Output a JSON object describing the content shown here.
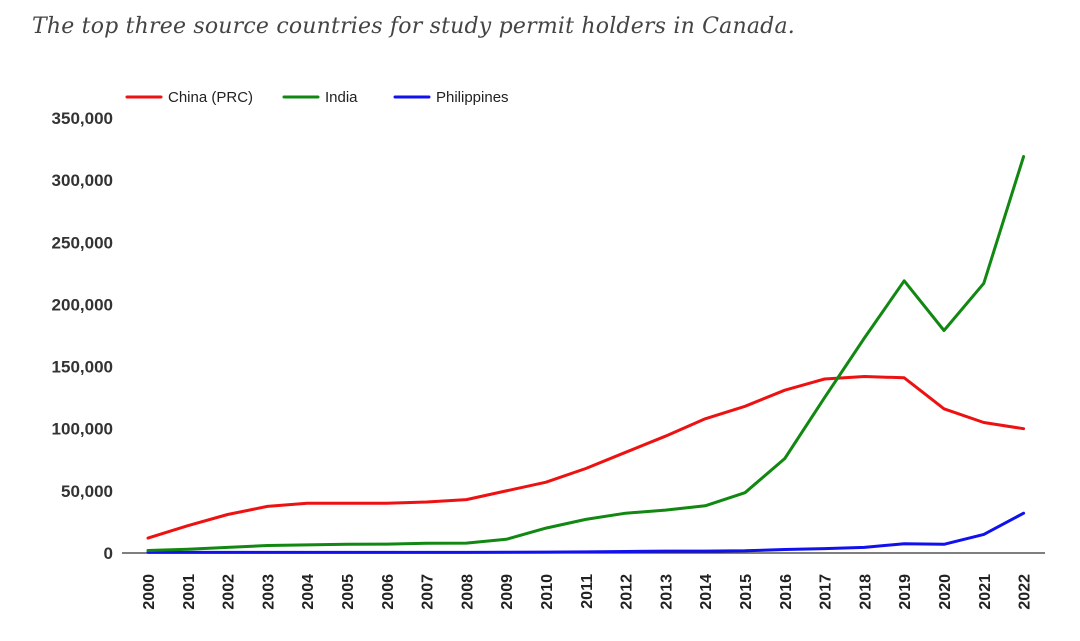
{
  "title": "The top three source countries for study permit holders in Canada.",
  "chart_data": {
    "type": "line",
    "title": "The top three source countries for study permit holders in Canada.",
    "xlabel": "",
    "ylabel": "",
    "x": [
      "2000",
      "2001",
      "2002",
      "2003",
      "2004",
      "2005",
      "2006",
      "2007",
      "2008",
      "2009",
      "2010",
      "2011",
      "2012",
      "2013",
      "2014",
      "2015",
      "2016",
      "2017",
      "2018",
      "2019",
      "2020",
      "2021",
      "2022"
    ],
    "ylim": [
      0,
      350000
    ],
    "yticks": [
      0,
      50000,
      100000,
      150000,
      200000,
      250000,
      300000,
      350000
    ],
    "ytick_labels": [
      "0",
      "50,000",
      "100,000",
      "150,000",
      "200,000",
      "250,000",
      "300,000",
      "350,000"
    ],
    "grid": false,
    "legend_position": "top-left",
    "series": [
      {
        "name": "China (PRC)",
        "color": "#ee1111",
        "values": [
          12000,
          22000,
          31000,
          37500,
          40000,
          40000,
          40000,
          41000,
          43000,
          50000,
          57000,
          68000,
          81000,
          94000,
          108000,
          118000,
          131000,
          140000,
          142000,
          141000,
          116000,
          105000,
          100000
        ]
      },
      {
        "name": "India",
        "color": "#118811",
        "values": [
          2000,
          3000,
          4500,
          6000,
          6500,
          7000,
          7200,
          7800,
          8000,
          11000,
          20000,
          27000,
          32000,
          34500,
          38000,
          48500,
          76000,
          125000,
          173000,
          219000,
          179000,
          217000,
          319000
        ]
      },
      {
        "name": "Philippines",
        "color": "#1111ee",
        "values": [
          500,
          500,
          500,
          500,
          500,
          500,
          500,
          500,
          500,
          600,
          700,
          900,
          1200,
          1500,
          1500,
          1800,
          2800,
          3500,
          4500,
          7500,
          7000,
          15000,
          32000
        ]
      }
    ]
  }
}
